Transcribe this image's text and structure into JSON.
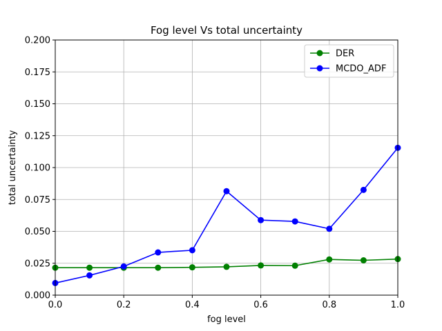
{
  "chart_data": {
    "type": "line",
    "title": "Fog level Vs total uncertainty",
    "xlabel": "fog level",
    "ylabel": "total uncertainty",
    "xlim": [
      0.0,
      1.0
    ],
    "ylim": [
      0.0,
      0.2
    ],
    "xticks": [
      "0.0",
      "0.2",
      "0.4",
      "0.6",
      "0.8",
      "1.0"
    ],
    "xtick_values": [
      0.0,
      0.2,
      0.4,
      0.6,
      0.8,
      1.0
    ],
    "yticks": [
      "0.000",
      "0.025",
      "0.050",
      "0.075",
      "0.100",
      "0.125",
      "0.150",
      "0.175",
      "0.200"
    ],
    "ytick_values": [
      0.0,
      0.025,
      0.05,
      0.075,
      0.1,
      0.125,
      0.15,
      0.175,
      0.2
    ],
    "grid": true,
    "legend_position": "top-right",
    "x": [
      0.0,
      0.1,
      0.2,
      0.3,
      0.4,
      0.5,
      0.6,
      0.7,
      0.8,
      0.9,
      1.0
    ],
    "series": [
      {
        "name": "DER",
        "color": "#008000",
        "values": [
          0.0215,
          0.0215,
          0.0215,
          0.0215,
          0.0218,
          0.0222,
          0.0233,
          0.0231,
          0.028,
          0.0273,
          0.0283
        ]
      },
      {
        "name": "MCDO_ADF",
        "color": "#0000ff",
        "values": [
          0.0095,
          0.0155,
          0.0225,
          0.0335,
          0.0352,
          0.0815,
          0.0588,
          0.0578,
          0.052,
          0.0825,
          0.1155
        ]
      }
    ]
  }
}
